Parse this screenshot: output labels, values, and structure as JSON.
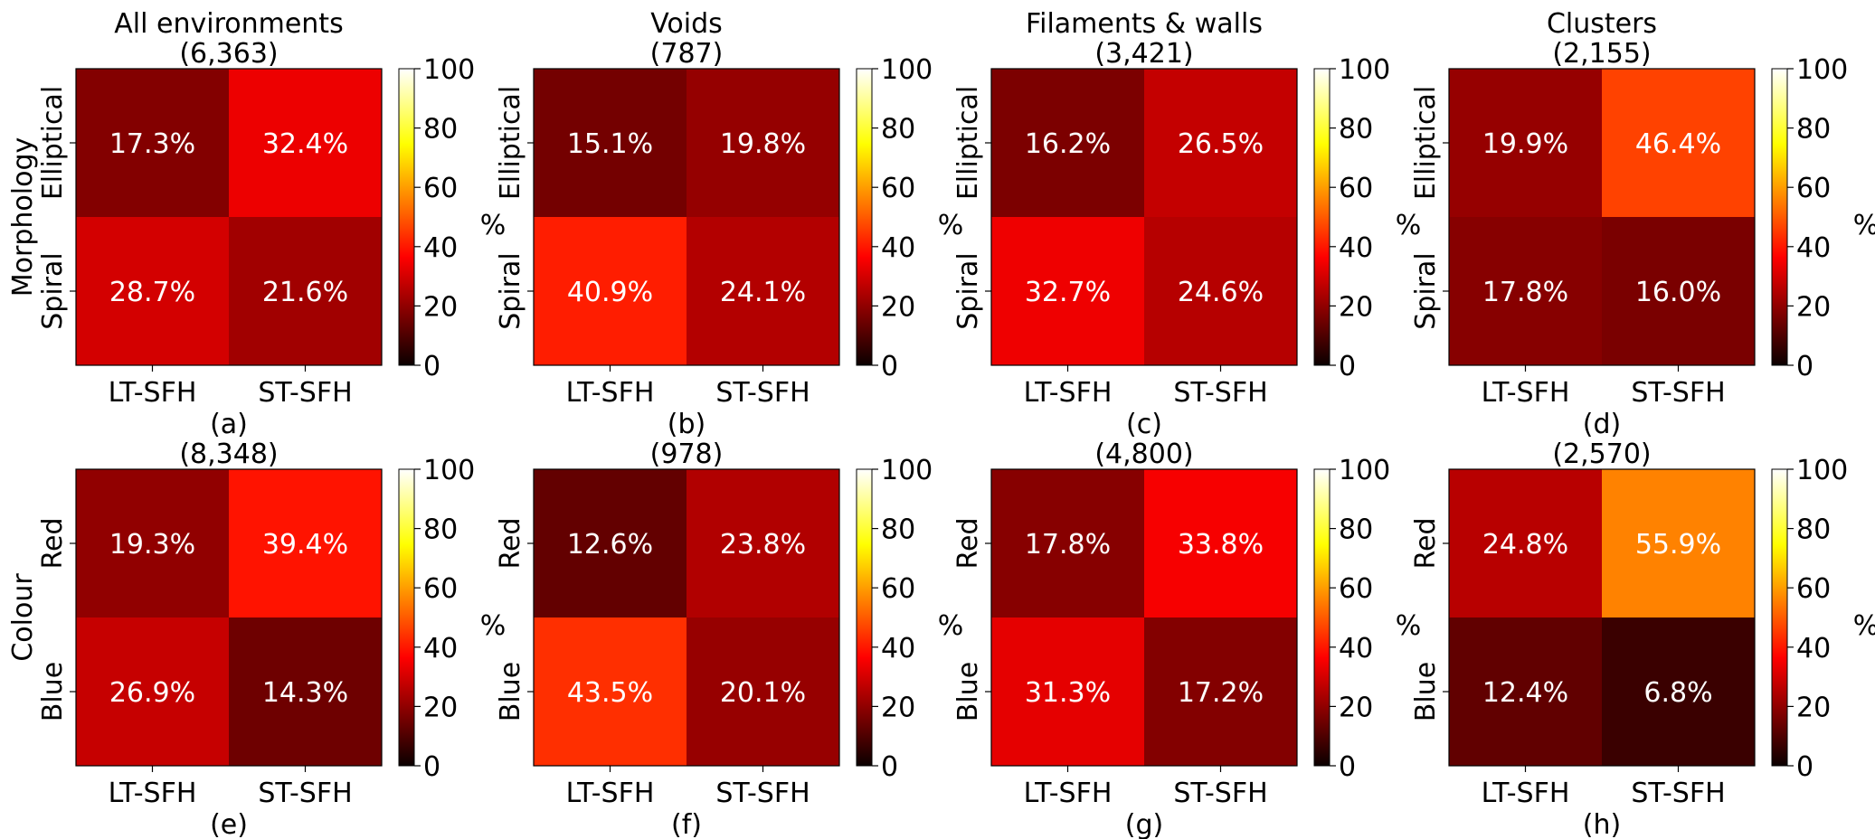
{
  "figure": {
    "row_labels": [
      "Morphology",
      "Colour"
    ],
    "colorbar_label": "%",
    "colorbar_ticks": [
      "0",
      "20",
      "40",
      "60",
      "80",
      "100"
    ],
    "colormap": "hot"
  },
  "chart_data": [
    {
      "type": "heatmap",
      "panel": "(a)",
      "title": "All environments",
      "count": "(6,363)",
      "xlabels": [
        "LT-SFH",
        "ST-SFH"
      ],
      "ylabels": [
        "Elliptical",
        "Spiral"
      ],
      "values": [
        [
          17.3,
          32.4
        ],
        [
          28.7,
          21.6
        ]
      ],
      "cells": [
        [
          "17.3%",
          "32.4%"
        ],
        [
          "28.7%",
          "21.6%"
        ]
      ],
      "vmin": 0,
      "vmax": 100
    },
    {
      "type": "heatmap",
      "panel": "(b)",
      "title": "Voids",
      "count": "(787)",
      "xlabels": [
        "LT-SFH",
        "ST-SFH"
      ],
      "ylabels": [
        "Elliptical",
        "Spiral"
      ],
      "values": [
        [
          15.1,
          19.8
        ],
        [
          40.9,
          24.1
        ]
      ],
      "cells": [
        [
          "15.1%",
          "19.8%"
        ],
        [
          "40.9%",
          "24.1%"
        ]
      ],
      "vmin": 0,
      "vmax": 100
    },
    {
      "type": "heatmap",
      "panel": "(c)",
      "title": "Filaments & walls",
      "count": "(3,421)",
      "xlabels": [
        "LT-SFH",
        "ST-SFH"
      ],
      "ylabels": [
        "Elliptical",
        "Spiral"
      ],
      "values": [
        [
          16.2,
          26.5
        ],
        [
          32.7,
          24.6
        ]
      ],
      "cells": [
        [
          "16.2%",
          "26.5%"
        ],
        [
          "32.7%",
          "24.6%"
        ]
      ],
      "vmin": 0,
      "vmax": 100
    },
    {
      "type": "heatmap",
      "panel": "(d)",
      "title": "Clusters",
      "count": "(2,155)",
      "xlabels": [
        "LT-SFH",
        "ST-SFH"
      ],
      "ylabels": [
        "Elliptical",
        "Spiral"
      ],
      "values": [
        [
          19.9,
          46.4
        ],
        [
          17.8,
          16.0
        ]
      ],
      "cells": [
        [
          "19.9%",
          "46.4%"
        ],
        [
          "17.8%",
          "16.0%"
        ]
      ],
      "vmin": 0,
      "vmax": 100
    },
    {
      "type": "heatmap",
      "panel": "(e)",
      "title": "",
      "count": "(8,348)",
      "xlabels": [
        "LT-SFH",
        "ST-SFH"
      ],
      "ylabels": [
        "Red",
        "Blue"
      ],
      "values": [
        [
          19.3,
          39.4
        ],
        [
          26.9,
          14.3
        ]
      ],
      "cells": [
        [
          "19.3%",
          "39.4%"
        ],
        [
          "26.9%",
          "14.3%"
        ]
      ],
      "vmin": 0,
      "vmax": 100
    },
    {
      "type": "heatmap",
      "panel": "(f)",
      "title": "",
      "count": "(978)",
      "xlabels": [
        "LT-SFH",
        "ST-SFH"
      ],
      "ylabels": [
        "Red",
        "Blue"
      ],
      "values": [
        [
          12.6,
          23.8
        ],
        [
          43.5,
          20.1
        ]
      ],
      "cells": [
        [
          "12.6%",
          "23.8%"
        ],
        [
          "43.5%",
          "20.1%"
        ]
      ],
      "vmin": 0,
      "vmax": 100
    },
    {
      "type": "heatmap",
      "panel": "(g)",
      "title": "",
      "count": "(4,800)",
      "xlabels": [
        "LT-SFH",
        "ST-SFH"
      ],
      "ylabels": [
        "Red",
        "Blue"
      ],
      "values": [
        [
          17.8,
          33.8
        ],
        [
          31.3,
          17.2
        ]
      ],
      "cells": [
        [
          "17.8%",
          "33.8%"
        ],
        [
          "31.3%",
          "17.2%"
        ]
      ],
      "vmin": 0,
      "vmax": 100
    },
    {
      "type": "heatmap",
      "panel": "(h)",
      "title": "",
      "count": "(2,570)",
      "xlabels": [
        "LT-SFH",
        "ST-SFH"
      ],
      "ylabels": [
        "Red",
        "Blue"
      ],
      "values": [
        [
          24.8,
          55.9
        ],
        [
          12.4,
          6.8
        ]
      ],
      "cells": [
        [
          "24.8%",
          "55.9%"
        ],
        [
          "12.4%",
          "6.8%"
        ]
      ],
      "vmin": 0,
      "vmax": 100
    }
  ]
}
